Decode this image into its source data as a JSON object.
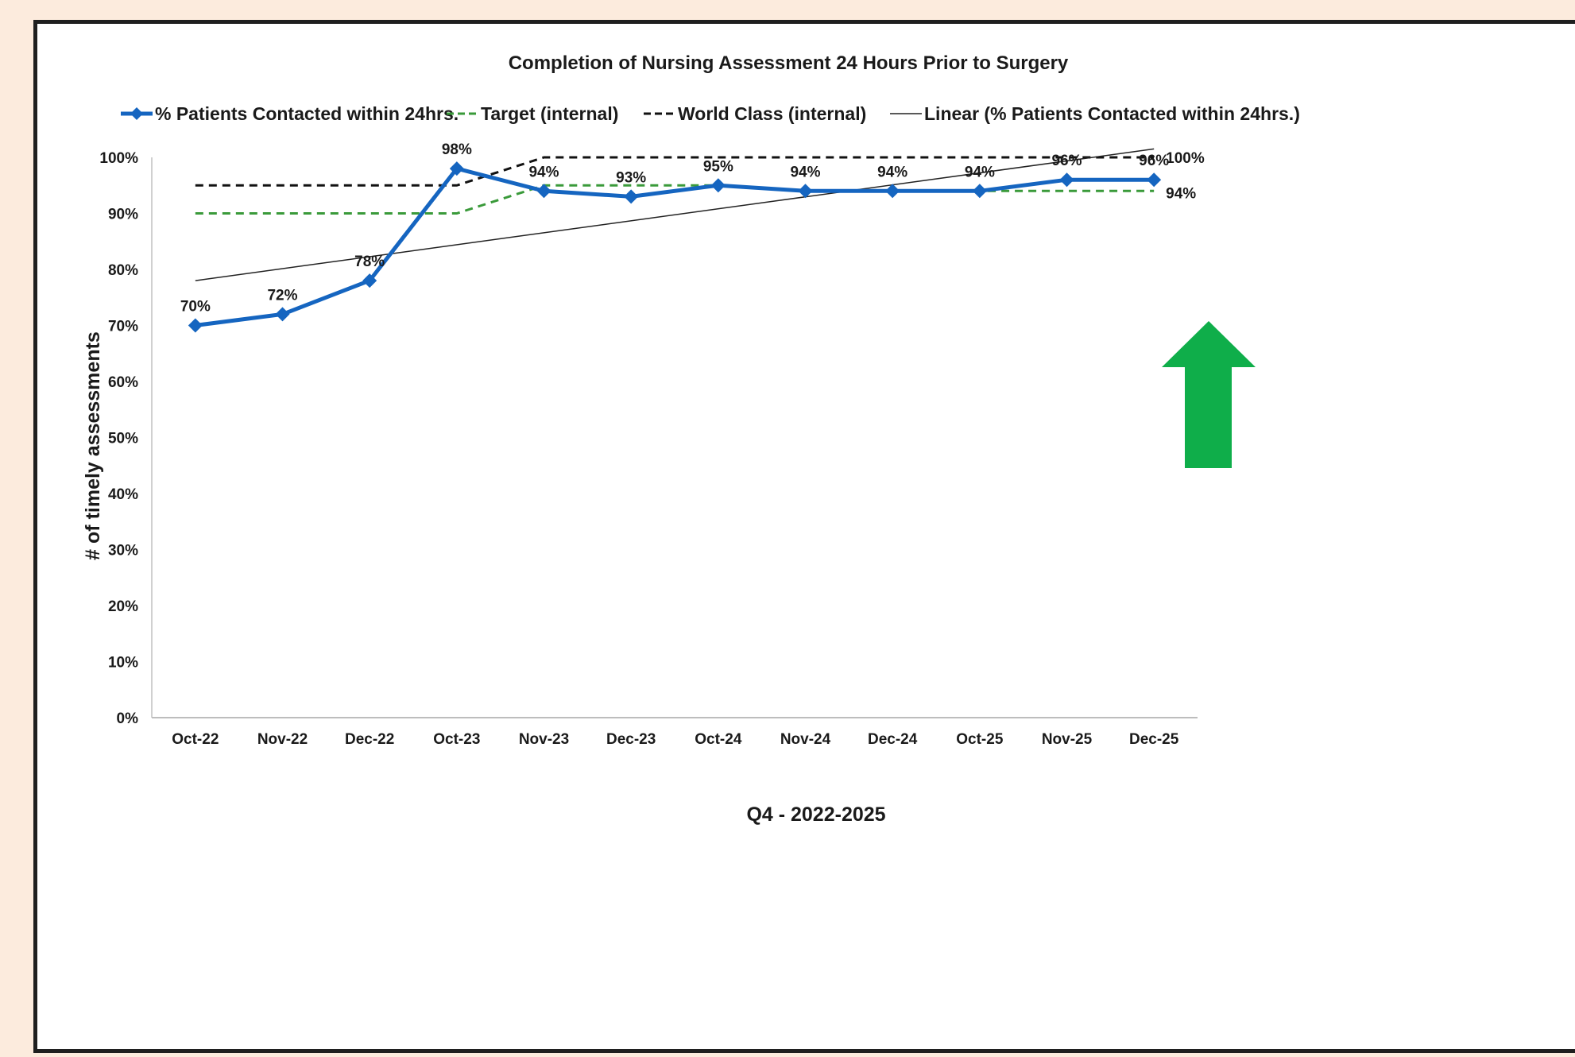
{
  "chart_data": {
    "type": "line",
    "title": "Completion of Nursing Assessment 24 Hours Prior to Surgery",
    "xlabel": "Q4 - 2022-2025",
    "ylabel": "# of timely assessments",
    "ylim": [
      0,
      100
    ],
    "y_ticks": [
      "0%",
      "10%",
      "20%",
      "30%",
      "40%",
      "50%",
      "60%",
      "70%",
      "80%",
      "90%",
      "100%"
    ],
    "categories": [
      "Oct-22",
      "Nov-22",
      "Dec-22",
      "Oct-23",
      "Nov-23",
      "Dec-23",
      "Oct-24",
      "Nov-24",
      "Dec-24",
      "Oct-25",
      "Nov-25",
      "Dec-25"
    ],
    "legend_position": "top",
    "grid": false,
    "series": [
      {
        "name": "% Patients Contacted within 24hrs.",
        "style": "solid-diamond",
        "color": "#1565c0",
        "values": [
          70,
          72,
          78,
          98,
          94,
          93,
          95,
          94,
          94,
          94,
          96,
          96
        ],
        "data_labels": [
          "70%",
          "72%",
          "78%",
          "98%",
          "94%",
          "93%",
          "95%",
          "94%",
          "94%",
          "94%",
          "96%",
          "96%"
        ]
      },
      {
        "name": "Target (internal)",
        "style": "dashed",
        "color": "#3a9a3a",
        "values": [
          90,
          90,
          90,
          90,
          95,
          95,
          95,
          94,
          94,
          94,
          94,
          94
        ],
        "end_label": "94%"
      },
      {
        "name": "World Class (internal)",
        "style": "dashed",
        "color": "#111111",
        "values": [
          95,
          95,
          95,
          95,
          100,
          100,
          100,
          100,
          100,
          100,
          100,
          100
        ],
        "end_label": "100%"
      },
      {
        "name": "Linear (% Patients Contacted within 24hrs.)",
        "style": "trendline",
        "color": "#222222",
        "start": 78,
        "end": 101.5
      }
    ],
    "annotation": {
      "icon": "up-arrow-icon",
      "color": "#0fae4a"
    }
  }
}
